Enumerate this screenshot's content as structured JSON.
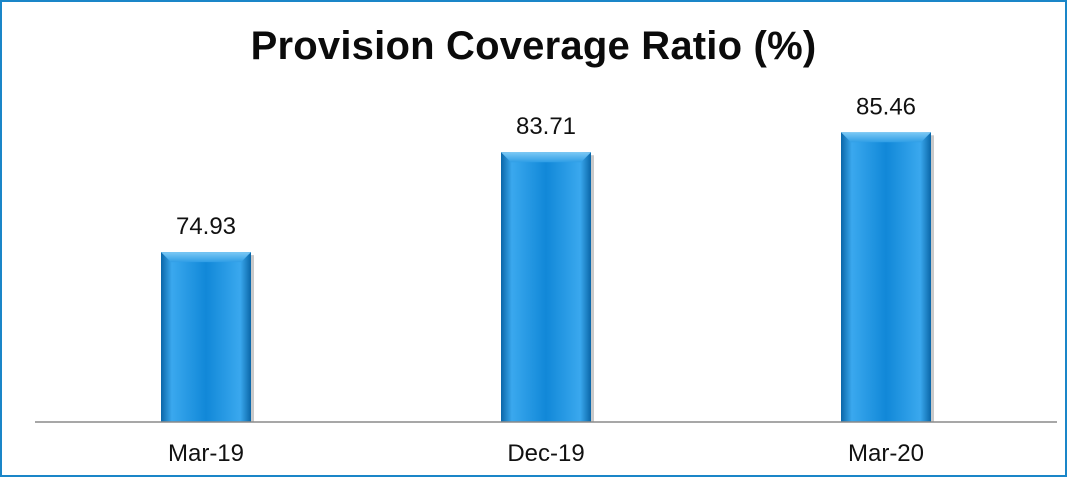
{
  "chart_data": {
    "type": "bar",
    "title": "Provision Coverage Ratio (%)",
    "categories": [
      "Mar-19",
      "Dec-19",
      "Mar-20"
    ],
    "values": [
      74.93,
      83.71,
      85.46
    ],
    "value_labels": [
      "74.93",
      "83.71",
      "85.46"
    ],
    "xlabel": "",
    "ylabel": "",
    "ylim": [
      60,
      89
    ],
    "grid": false,
    "legend": "none",
    "colors": {
      "bar": "#1188d8",
      "bar_light": "#3aa8ee",
      "bar_dark": "#0a66a8",
      "border": "#1a86c8",
      "axis": "#8a8a8a"
    }
  }
}
